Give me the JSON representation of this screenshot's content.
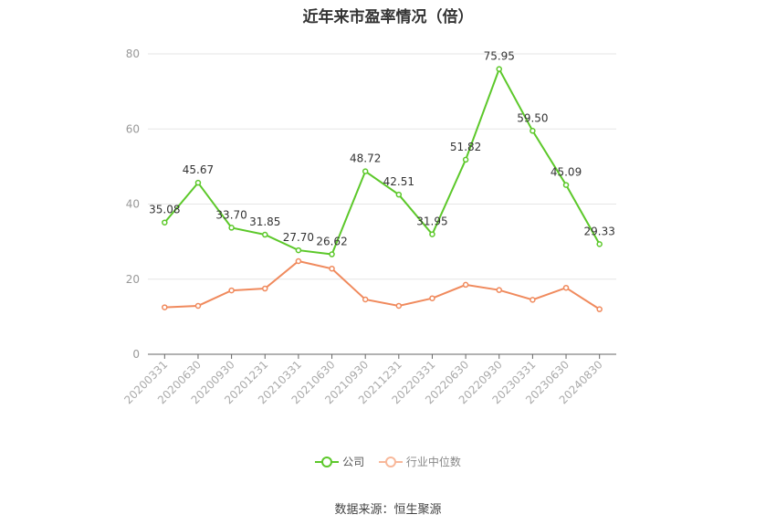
{
  "chart_data": {
    "type": "line",
    "title": "近年来市盈率情况（倍）",
    "categories": [
      "20200331",
      "20200630",
      "20200930",
      "20201231",
      "20210331",
      "20210630",
      "20210930",
      "20211231",
      "20220331",
      "20220630",
      "20220930",
      "20230331",
      "20230630",
      "20240830"
    ],
    "ylim": [
      0,
      80
    ],
    "yticks": [
      "0",
      "20",
      "40",
      "60",
      "80"
    ],
    "grid": true,
    "legend_position": "bottom",
    "series": [
      {
        "name": "公司",
        "color": "#5cc82a",
        "values": [
          35.08,
          45.67,
          33.7,
          31.85,
          27.7,
          26.62,
          48.72,
          42.51,
          31.95,
          51.82,
          75.95,
          59.5,
          45.09,
          29.33
        ],
        "labels": [
          "35.08",
          "45.67",
          "33.70",
          "31.85",
          "27.70",
          "26.62",
          "48.72",
          "42.51",
          "31.95",
          "51.82",
          "75.95",
          "59.50",
          "45.09",
          "29.33"
        ]
      },
      {
        "name": "行业中位数",
        "color": "#f08a5d",
        "values": [
          12.5,
          12.9,
          17.0,
          17.5,
          24.8,
          22.8,
          14.6,
          12.9,
          14.9,
          18.5,
          17.1,
          14.5,
          17.7,
          12.0
        ]
      }
    ]
  },
  "source": "数据来源：恒生聚源"
}
